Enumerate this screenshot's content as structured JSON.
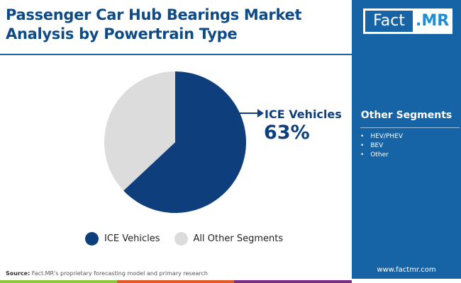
{
  "header": {
    "title_line1": "Passenger Car Hub Bearings Market",
    "title_line2": "Analysis by Powertrain Type"
  },
  "logo": {
    "part1": "Fact",
    "part2": ".MR"
  },
  "sidebar": {
    "title": "Other Segments",
    "items": [
      "HEV/PHEV",
      "BEV",
      "Other"
    ],
    "website": "www.factmr.com"
  },
  "footer": {
    "source_label": "Source:",
    "source_text": " Fact.MR's proprietary forecasting model and primary research"
  },
  "colors": {
    "ice": "#0e3f7c",
    "other": "#dcdcdc",
    "sidebar": "#1664a6",
    "bars": [
      "#8dc63f",
      "#e55a2b",
      "#7b2c83"
    ]
  },
  "chart_data": {
    "type": "pie",
    "slices": [
      {
        "label": "ICE Vehicles",
        "value": 63
      },
      {
        "label": "All Other Segments",
        "value": 37
      }
    ],
    "callout": {
      "label": "ICE Vehicles",
      "value": "63%"
    },
    "legend": "bottom"
  }
}
